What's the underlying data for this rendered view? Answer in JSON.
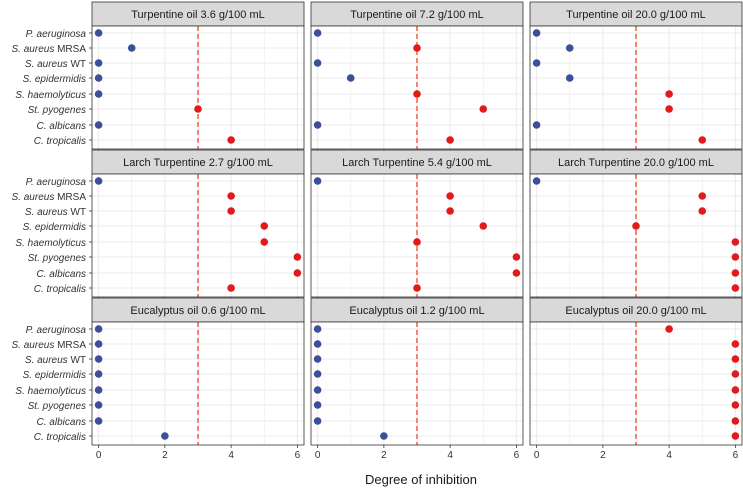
{
  "chart_data": {
    "type": "scatter",
    "xlabel": "Degree of inhibition",
    "ylabel": "",
    "xlim": [
      -0.2,
      6.2
    ],
    "xticks": [
      0,
      2,
      4,
      6
    ],
    "threshold": 3,
    "categories": [
      "P. aeruginosa",
      "S. aureus MRSA",
      "S. aureus WT",
      "S. epidermidis",
      "S. haemolyticus",
      "St. pyogenes",
      "C. albicans",
      "C. tropicalis"
    ],
    "category_labels": [
      {
        "italic": "P. aeruginosa",
        "plain": ""
      },
      {
        "italic": "S. aureus",
        "plain": " MRSA"
      },
      {
        "italic": "S. aureus",
        "plain": " WT"
      },
      {
        "italic": "S. epidermidis",
        "plain": ""
      },
      {
        "italic": "S. haemolyticus",
        "plain": ""
      },
      {
        "italic": "St. pyogenes",
        "plain": ""
      },
      {
        "italic": "C. albicans",
        "plain": ""
      },
      {
        "italic": "C. tropicalis",
        "plain": ""
      }
    ],
    "colors": {
      "below_threshold": "#3B4F9A",
      "at_or_above_threshold": "#E31A1C",
      "threshold_line": "#E8472A",
      "strip": "#D9D9D9",
      "grid": "#EBEBEB"
    },
    "panels": [
      {
        "title": "Turpentine oil 3.6 g/100 mL",
        "values": [
          0,
          1,
          0,
          0,
          0,
          3,
          0,
          4
        ]
      },
      {
        "title": "Turpentine oil 7.2 g/100 mL",
        "values": [
          0,
          3,
          0,
          1,
          3,
          5,
          0,
          4
        ]
      },
      {
        "title": "Turpentine oil 20.0 g/100 mL",
        "values": [
          0,
          1,
          0,
          1,
          4,
          4,
          0,
          5
        ]
      },
      {
        "title": "Larch Turpentine 2.7 g/100 mL",
        "values": [
          0,
          4,
          4,
          5,
          5,
          6,
          6,
          4
        ]
      },
      {
        "title": "Larch Turpentine 5.4 g/100 mL",
        "values": [
          0,
          4,
          4,
          5,
          3,
          6,
          6,
          3
        ]
      },
      {
        "title": "Larch Turpentine 20.0 g/100 mL",
        "values": [
          0,
          5,
          5,
          3,
          6,
          6,
          6,
          6
        ]
      },
      {
        "title": "Eucalyptus oil 0.6 g/100 mL",
        "values": [
          0,
          0,
          0,
          0,
          0,
          0,
          0,
          2
        ]
      },
      {
        "title": "Eucalyptus oil 1.2 g/100 mL",
        "values": [
          0,
          0,
          0,
          0,
          0,
          0,
          0,
          2
        ]
      },
      {
        "title": "Eucalyptus oil 20.0 g/100 mL",
        "values": [
          4,
          6,
          6,
          6,
          6,
          6,
          6,
          6
        ]
      }
    ]
  }
}
